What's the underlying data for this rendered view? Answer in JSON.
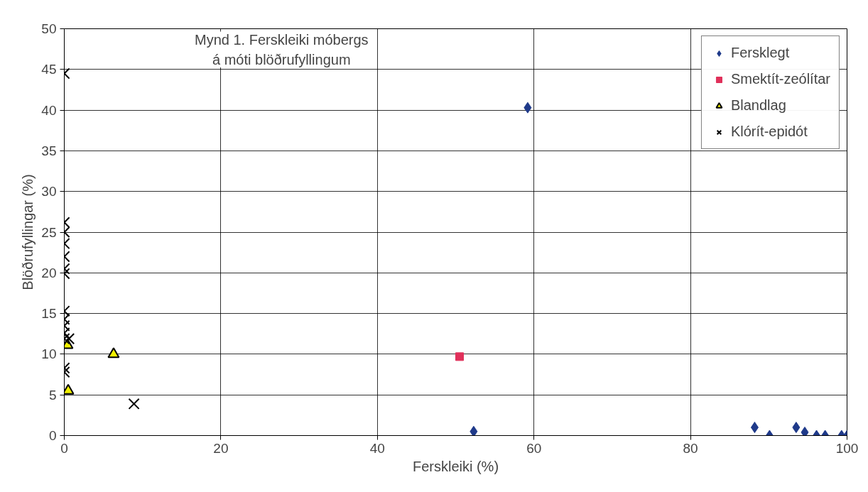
{
  "chart_data": {
    "type": "scatter",
    "title": "Mynd 1.  Ferskleiki móbergs\ná móti  blöðrufyllingum",
    "xlabel": "Ferskleiki (%)",
    "ylabel": "Blöðrufyllingar (%)",
    "xlim": [
      0,
      100
    ],
    "ylim": [
      0,
      50
    ],
    "xticks": [
      0,
      20,
      40,
      60,
      80,
      100
    ],
    "yticks": [
      0,
      5,
      10,
      15,
      20,
      25,
      30,
      35,
      40,
      45,
      50
    ],
    "grid": true,
    "legend": "top right",
    "series": [
      {
        "name": "Fersklegt",
        "color": "#1f3a8a",
        "marker": "diamond",
        "x": [
          52.3,
          59.2,
          88.2,
          90.1,
          93.5,
          94.6,
          96.1,
          97.2,
          99.3,
          100
        ],
        "values": [
          0.5,
          40.3,
          1.0,
          0,
          1.0,
          0.4,
          0,
          0,
          0,
          0
        ]
      },
      {
        "name": "Smektít-zeólítar",
        "color": "#e0305a",
        "marker": "square",
        "x": [
          50.5
        ],
        "values": [
          9.7
        ]
      },
      {
        "name": "Blandlag",
        "color": "#f0f000",
        "marker": "triangle",
        "x": [
          0.4,
          6.3,
          0.5
        ],
        "values": [
          11.1,
          10.0,
          5.5
        ]
      },
      {
        "name": "Klórít-epidót",
        "color": "#000000",
        "marker": "cross",
        "x": [
          0,
          0,
          0,
          0,
          0,
          0,
          0,
          0,
          0,
          0,
          0,
          0.6,
          0,
          0,
          0,
          8.9
        ],
        "values": [
          44.5,
          26.2,
          25,
          23.6,
          22,
          20.5,
          19.9,
          15.3,
          14.3,
          13.5,
          12.6,
          11.9,
          8.3,
          7.8,
          11.9,
          3.9
        ]
      }
    ]
  }
}
